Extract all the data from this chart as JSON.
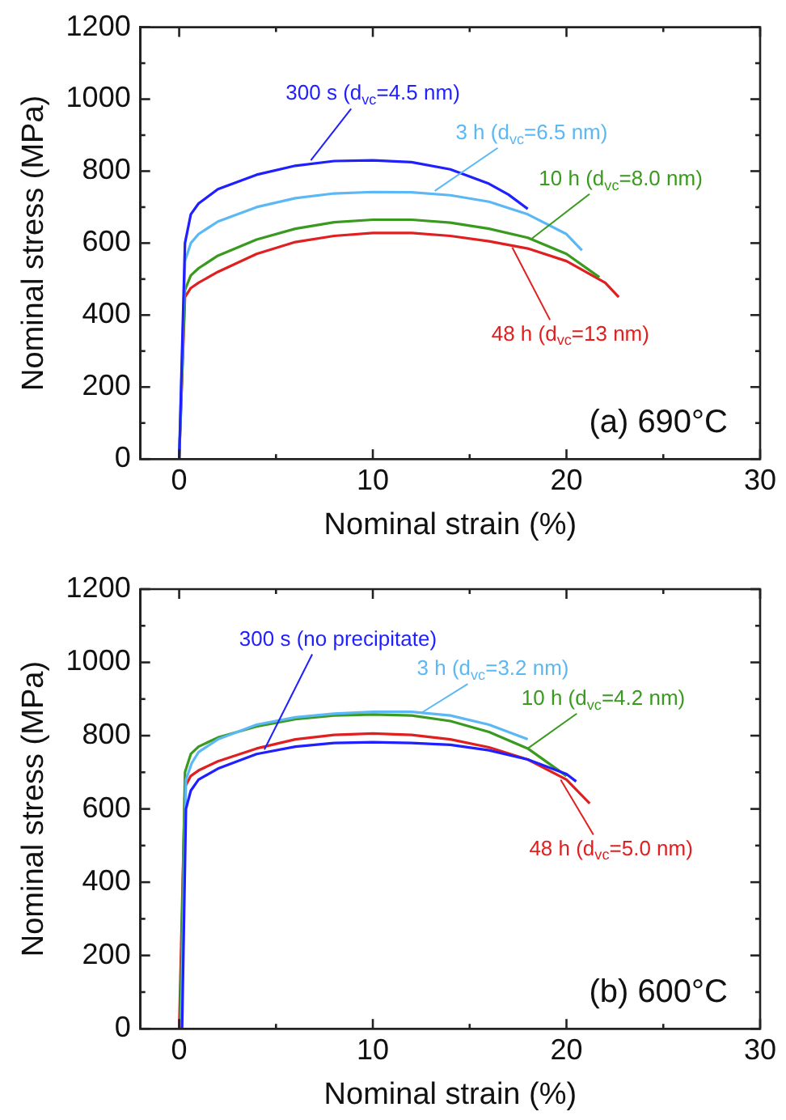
{
  "chart_data": [
    {
      "type": "line",
      "xlabel": "Nominal strain (%)",
      "ylabel": "Nominal stress (MPa)",
      "xlim": [
        -2,
        30
      ],
      "ylim": [
        0,
        1200
      ],
      "xticks": [
        0,
        {
          "value": 5,
          "label": null
        },
        10,
        {
          "value": 15,
          "label": null
        },
        20,
        {
          "value": 25,
          "label": null
        },
        30
      ],
      "yticks": [
        0,
        {
          "value": 100,
          "label": null
        },
        200,
        {
          "value": 300,
          "label": null
        },
        400,
        {
          "value": 500,
          "label": null
        },
        600,
        {
          "value": 700,
          "label": null
        },
        800,
        {
          "value": 900,
          "label": null
        },
        1000,
        {
          "value": 1100,
          "label": null
        },
        1200
      ],
      "grid": false,
      "annotations": [
        "(a) 690°C"
      ],
      "series": [
        {
          "name": "300 s (d$_{vc}$=4.5 nm)",
          "color": "#1f1fff",
          "x": [
            0,
            0.3,
            0.6,
            1,
            2,
            4,
            6,
            8,
            10,
            12,
            14,
            16,
            17,
            18
          ],
          "values": [
            0,
            600,
            680,
            710,
            750,
            790,
            815,
            828,
            830,
            825,
            805,
            765,
            735,
            695
          ]
        },
        {
          "name": "3 h (d$_{vc}$=6.5 nm)",
          "color": "#5bb8f5",
          "x": [
            0,
            0.3,
            0.6,
            1,
            2,
            4,
            6,
            8,
            10,
            12,
            14,
            16,
            18,
            20,
            20.8
          ],
          "values": [
            0,
            550,
            600,
            625,
            660,
            700,
            725,
            738,
            742,
            741,
            733,
            715,
            680,
            625,
            580
          ]
        },
        {
          "name": "10 h (d$_{vc}$=8.0 nm)",
          "color": "#3a9a1f",
          "x": [
            0,
            0.3,
            0.6,
            1,
            2,
            4,
            6,
            8,
            10,
            12,
            14,
            16,
            18,
            20,
            21.7
          ],
          "values": [
            0,
            470,
            510,
            530,
            565,
            610,
            640,
            658,
            665,
            665,
            657,
            640,
            615,
            570,
            505
          ]
        },
        {
          "name": "48 h (d$_{vc}$=13 nm)",
          "color": "#e02020",
          "x": [
            0,
            0.3,
            0.6,
            1,
            2,
            4,
            6,
            8,
            10,
            12,
            14,
            16,
            18,
            20,
            22,
            22.7
          ],
          "values": [
            0,
            450,
            475,
            490,
            520,
            570,
            603,
            620,
            628,
            628,
            620,
            605,
            585,
            550,
            490,
            450
          ]
        }
      ]
    },
    {
      "type": "line",
      "xlabel": "Nominal strain (%)",
      "ylabel": "Nominal stress (MPa)",
      "xlim": [
        -2,
        30
      ],
      "ylim": [
        0,
        1200
      ],
      "xticks": [
        0,
        {
          "value": 5,
          "label": null
        },
        10,
        {
          "value": 15,
          "label": null
        },
        20,
        {
          "value": 25,
          "label": null
        },
        30
      ],
      "yticks": [
        0,
        {
          "value": 100,
          "label": null
        },
        200,
        {
          "value": 300,
          "label": null
        },
        400,
        {
          "value": 500,
          "label": null
        },
        600,
        {
          "value": 700,
          "label": null
        },
        800,
        {
          "value": 900,
          "label": null
        },
        1000,
        {
          "value": 1100,
          "label": null
        },
        1200
      ],
      "grid": false,
      "annotations": [
        "(b) 600°C"
      ],
      "series": [
        {
          "name": "300 s (no precipitate)",
          "color": "#1f1fff",
          "x": [
            0.15,
            0.35,
            0.6,
            1,
            2,
            4,
            6,
            8,
            10,
            12,
            14,
            16,
            18,
            20,
            20.5
          ],
          "values": [
            0,
            600,
            650,
            680,
            710,
            750,
            770,
            780,
            782,
            780,
            775,
            760,
            735,
            695,
            675
          ]
        },
        {
          "name": "3 h (d$_{vc}$=3.2 nm)",
          "color": "#5bb8f5",
          "x": [
            0.1,
            0.35,
            0.65,
            1,
            2,
            4,
            6,
            8,
            10,
            12,
            14,
            16,
            18
          ],
          "values": [
            0,
            680,
            725,
            755,
            790,
            830,
            850,
            860,
            865,
            865,
            855,
            830,
            790
          ]
        },
        {
          "name": "10 h (d$_{vc}$=4.2 nm)",
          "color": "#3a9a1f",
          "x": [
            0.05,
            0.3,
            0.6,
            1,
            2,
            4,
            6,
            8,
            10,
            12,
            14,
            16,
            18,
            20
          ],
          "values": [
            0,
            700,
            750,
            770,
            795,
            825,
            845,
            855,
            858,
            855,
            840,
            810,
            765,
            690
          ]
        },
        {
          "name": "48 h (d$_{vc}$=5.0 nm)",
          "color": "#e02020",
          "x": [
            0,
            0.3,
            0.6,
            1,
            2,
            4,
            6,
            8,
            10,
            12,
            14,
            16,
            18,
            20,
            21.2
          ],
          "values": [
            0,
            660,
            690,
            705,
            730,
            765,
            790,
            802,
            806,
            802,
            790,
            768,
            735,
            680,
            615
          ]
        }
      ]
    }
  ]
}
